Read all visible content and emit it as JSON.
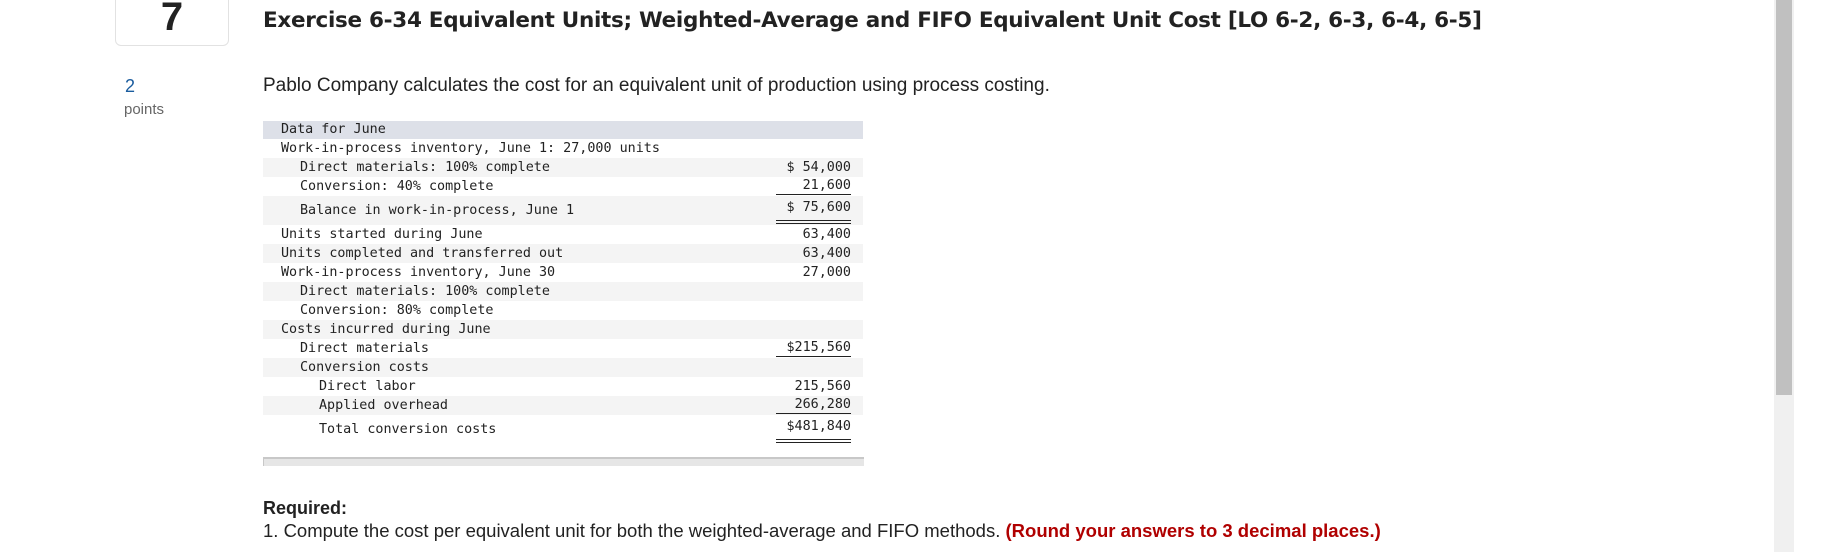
{
  "question": {
    "number": "7",
    "title": "Exercise 6-34 Equivalent Units; Weighted-Average and FIFO Equivalent Unit Cost [LO 6-2, 6-3, 6-4, 6-5]",
    "points_value": "2",
    "points_label": "points",
    "intro": "Pablo Company calculates the cost for an equivalent unit of production using process costing."
  },
  "table": {
    "header": "Data for June",
    "rows": [
      {
        "label": "Work-in-process inventory, June 1: 27,000 units",
        "value": ""
      },
      {
        "label": "Direct materials: 100% complete",
        "value": "$ 54,000"
      },
      {
        "label": "Conversion: 40% complete",
        "value": "21,600"
      },
      {
        "label": "Balance in work-in-process, June 1",
        "value": "$ 75,600"
      },
      {
        "label": "Units started during June",
        "value": "63,400"
      },
      {
        "label": "Units completed and transferred out",
        "value": "63,400"
      },
      {
        "label": "Work-in-process inventory, June 30",
        "value": "27,000"
      },
      {
        "label": "Direct materials: 100% complete",
        "value": ""
      },
      {
        "label": "Conversion: 80% complete",
        "value": ""
      },
      {
        "label": "Costs incurred during June",
        "value": ""
      },
      {
        "label": "Direct materials",
        "value": "$215,560"
      },
      {
        "label": "Conversion costs",
        "value": ""
      },
      {
        "label": "Direct labor",
        "value": "215,560"
      },
      {
        "label": "Applied overhead",
        "value": "266,280"
      },
      {
        "label": "Total conversion costs",
        "value": "$481,840"
      }
    ]
  },
  "required": {
    "heading": "Required:",
    "item1": "1. Compute the cost per equivalent unit for both the weighted-average and FIFO methods.",
    "item1_note": "(Round your answers to 3 decimal places.)",
    "note_color": "#b00000"
  }
}
